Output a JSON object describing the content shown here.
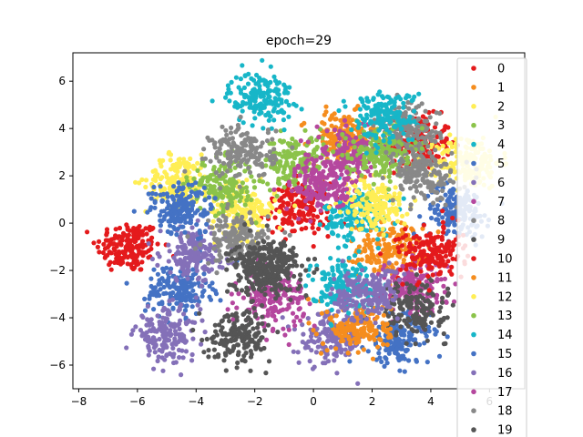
{
  "chart_data": {
    "type": "scatter",
    "title": "epoch=29",
    "xlabel": "",
    "ylabel": "",
    "xlim": [
      -8.2,
      7.2
    ],
    "ylim": [
      -7.0,
      7.2
    ],
    "x_ticks": [
      -8,
      -6,
      -4,
      -2,
      0,
      2,
      4,
      6
    ],
    "y_ticks": [
      -6,
      -4,
      -2,
      0,
      2,
      4,
      6
    ],
    "grid": false,
    "legend_position": "right",
    "series": [
      {
        "name": "0",
        "color": "#e41a1c",
        "clusters": [
          [
            -6.3,
            -1.0
          ],
          [
            3.6,
            3.4
          ],
          [
            -0.5,
            0.6
          ]
        ]
      },
      {
        "name": "1",
        "color": "#f58d1e",
        "clusters": [
          [
            2.6,
            -1.1
          ],
          [
            1.0,
            3.6
          ]
        ]
      },
      {
        "name": "2",
        "color": "#ffee55",
        "clusters": [
          [
            5.3,
            2.6
          ],
          [
            -4.6,
            1.8
          ],
          [
            -2.4,
            0.5
          ]
        ]
      },
      {
        "name": "3",
        "color": "#8bc34a",
        "clusters": [
          [
            -3.1,
            1.6
          ],
          [
            -0.6,
            2.6
          ]
        ]
      },
      {
        "name": "4",
        "color": "#17b6c8",
        "clusters": [
          [
            -1.8,
            5.3
          ],
          [
            1.5,
            0.4
          ]
        ]
      },
      {
        "name": "5",
        "color": "#4472c4",
        "clusters": [
          [
            4.9,
            0.5
          ],
          [
            -4.6,
            -2.8
          ],
          [
            2.9,
            -4.9
          ]
        ]
      },
      {
        "name": "6",
        "color": "#8470b8",
        "clusters": [
          [
            -4.1,
            -1.3
          ],
          [
            -5.0,
            -4.7
          ],
          [
            0.6,
            -4.9
          ]
        ]
      },
      {
        "name": "7",
        "color": "#b5479e",
        "clusters": [
          [
            1.2,
            2.8
          ],
          [
            -1.4,
            -3.2
          ],
          [
            3.4,
            -2.7
          ]
        ]
      },
      {
        "name": "8",
        "color": "#888888",
        "clusters": [
          [
            -2.4,
            3.0
          ],
          [
            3.2,
            3.9
          ],
          [
            -2.6,
            -0.7
          ]
        ]
      },
      {
        "name": "9",
        "color": "#555555",
        "clusters": [
          [
            -1.5,
            -1.8
          ],
          [
            -2.5,
            -4.7
          ],
          [
            3.4,
            -3.6
          ]
        ]
      },
      {
        "name": "10",
        "color": "#e41a1c",
        "clusters": [
          [
            4.0,
            -1.3
          ]
        ]
      },
      {
        "name": "11",
        "color": "#f58d1e",
        "clusters": [
          [
            1.6,
            -4.4
          ]
        ]
      },
      {
        "name": "12",
        "color": "#ffee55",
        "clusters": [
          [
            2.1,
            0.8
          ]
        ]
      },
      {
        "name": "13",
        "color": "#8bc34a",
        "clusters": [
          [
            2.2,
            3.0
          ]
        ]
      },
      {
        "name": "14",
        "color": "#17b6c8",
        "clusters": [
          [
            1.0,
            -2.6
          ],
          [
            2.4,
            4.5
          ]
        ]
      },
      {
        "name": "15",
        "color": "#4472c4",
        "clusters": [
          [
            -4.5,
            0.6
          ]
        ]
      },
      {
        "name": "16",
        "color": "#8470b8",
        "clusters": [
          [
            1.8,
            -3.0
          ]
        ]
      },
      {
        "name": "17",
        "color": "#b5479e",
        "clusters": [
          [
            0.3,
            1.6
          ]
        ]
      },
      {
        "name": "18",
        "color": "#888888",
        "clusters": [
          [
            3.8,
            2.0
          ]
        ]
      },
      {
        "name": "19",
        "color": "#555555",
        "clusters": [
          [
            -1.7,
            -1.9
          ]
        ]
      }
    ]
  }
}
